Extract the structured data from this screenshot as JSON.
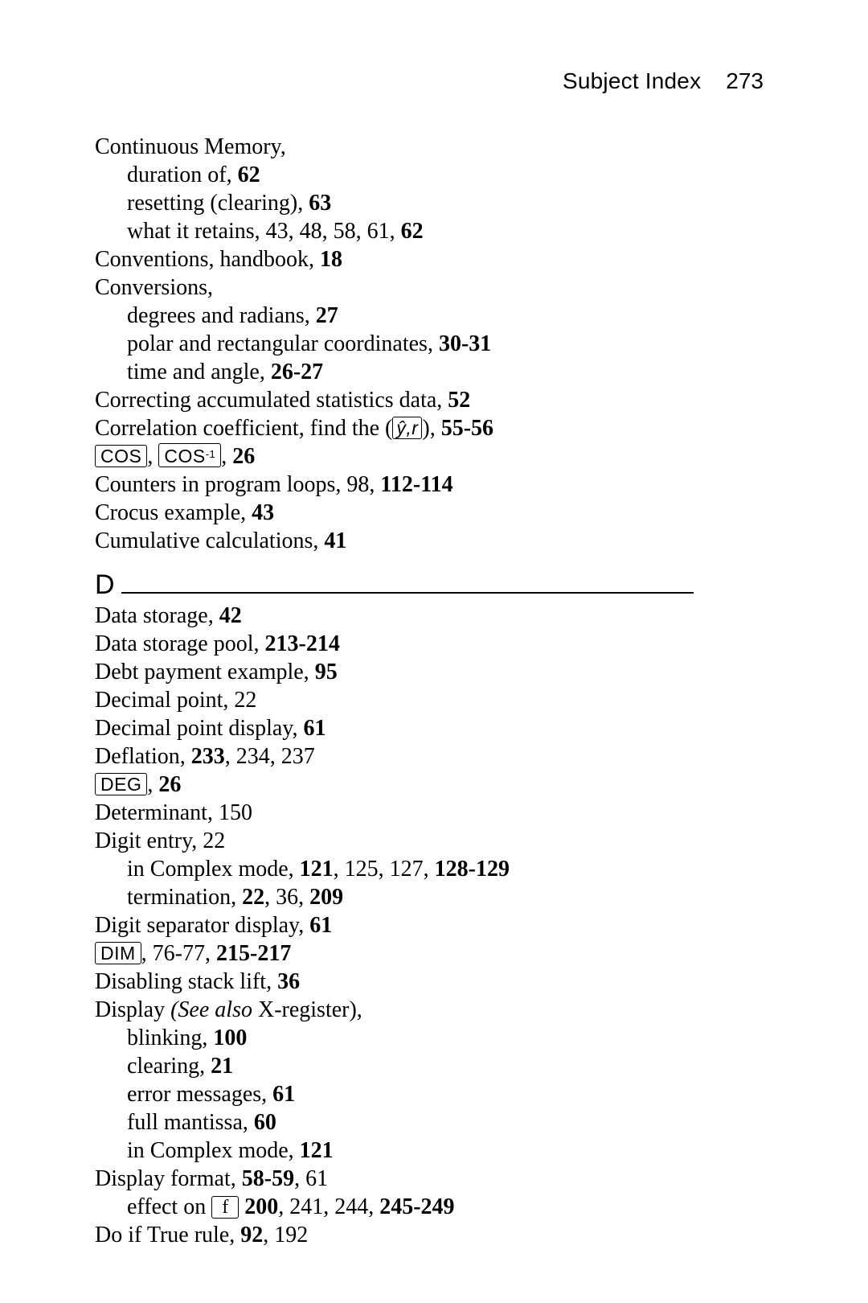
{
  "header": {
    "title": "Subject Index",
    "page_number": "273"
  },
  "keys": {
    "yhat_r": "ŷ,r",
    "cos": "COS",
    "cos_inv_base": "COS",
    "cos_inv_sup": "-1",
    "deg": "DEG",
    "dim": "DIM",
    "f": "f"
  },
  "section_letter": "D",
  "lines": {
    "l1": "Continuous Memory,",
    "l2a": "duration of, ",
    "l2b": "62",
    "l3a": "resetting (clearing), ",
    "l3b": "63",
    "l4a": "what it retains, 43, 48, 58, 61, ",
    "l4b": "62",
    "l5a": "Conventions, handbook, ",
    "l5b": "18",
    "l6": "Conversions,",
    "l7a": "degrees and radians, ",
    "l7b": "27",
    "l8a": "polar and rectangular coordinates, ",
    "l8b": "30-31",
    "l9a": "time and angle, ",
    "l9b": "26-27",
    "l10a": "Correcting accumulated statistics data, ",
    "l10b": "52",
    "l11a": "Correlation coefficient, find the (",
    "l11b": "), ",
    "l11c": "55-56",
    "l12a": ", ",
    "l12b": ", ",
    "l12c": "26",
    "l13a": "Counters in program loops, 98, ",
    "l13b": "112-114",
    "l14a": "Crocus example, ",
    "l14b": "43",
    "l15a": "Cumulative calculations, ",
    "l15b": "41",
    "d1a": "Data storage, ",
    "d1b": "42",
    "d2a": "Data storage pool, ",
    "d2b": "213-214",
    "d3a": "Debt payment example, ",
    "d3b": "95",
    "d4": "Decimal point, 22",
    "d5a": "Decimal point display, ",
    "d5b": "61",
    "d6a": "Deflation, ",
    "d6b": "233",
    "d6c": ", 234, 237",
    "d7a": ", ",
    "d7b": "26",
    "d8": "Determinant, 150",
    "d9": "Digit entry, 22",
    "d10a": "in Complex mode, ",
    "d10b": "121",
    "d10c": ", 125, 127, ",
    "d10d": "128-129",
    "d11a": "termination, ",
    "d11b": "22",
    "d11c": ", 36, ",
    "d11d": "209",
    "d12a": "Digit separator display, ",
    "d12b": "61",
    "d13a": ", 76-77, ",
    "d13b": "215-217",
    "d14a": "Disabling stack lift, ",
    "d14b": "36",
    "d15a": "Display ",
    "d15b": "(See also",
    "d15c": " X-register),",
    "d16a": "blinking, ",
    "d16b": "100",
    "d17a": "clearing, ",
    "d17b": "21",
    "d18a": "error messages, ",
    "d18b": "61",
    "d19a": "full mantissa, ",
    "d19b": "60",
    "d20a": "in Complex mode, ",
    "d20b": "121",
    "d21a": "Display format, ",
    "d21b": "58-59",
    "d21c": ", 61",
    "d22a": "effect on ",
    "d22b": " ",
    "d22c": "200",
    "d22d": ", 241, 244, ",
    "d22e": "245-249",
    "d23a": "Do if True rule, ",
    "d23b": "92",
    "d23c": ", 192"
  }
}
